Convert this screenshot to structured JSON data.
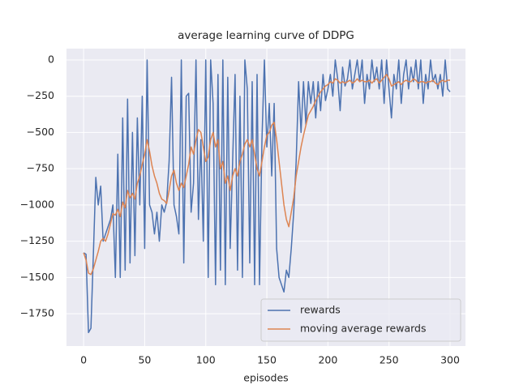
{
  "chart_data": {
    "type": "line",
    "title": "average learning curve of DDPG",
    "xlabel": "episodes",
    "x": [
      0,
      2,
      4,
      6,
      8,
      10,
      12,
      14,
      16,
      18,
      20,
      22,
      24,
      26,
      28,
      30,
      32,
      34,
      36,
      38,
      40,
      42,
      44,
      46,
      48,
      50,
      52,
      54,
      56,
      58,
      60,
      62,
      64,
      66,
      68,
      70,
      72,
      74,
      76,
      78,
      80,
      82,
      84,
      86,
      88,
      90,
      92,
      94,
      96,
      98,
      100,
      102,
      104,
      106,
      108,
      110,
      112,
      114,
      116,
      118,
      120,
      122,
      124,
      126,
      128,
      130,
      132,
      134,
      136,
      138,
      140,
      142,
      144,
      146,
      148,
      150,
      152,
      154,
      156,
      158,
      160,
      162,
      164,
      166,
      168,
      170,
      172,
      174,
      176,
      178,
      180,
      182,
      184,
      186,
      188,
      190,
      192,
      194,
      196,
      198,
      200,
      202,
      204,
      206,
      208,
      210,
      212,
      214,
      216,
      218,
      220,
      222,
      224,
      226,
      228,
      230,
      232,
      234,
      236,
      238,
      240,
      242,
      244,
      246,
      248,
      250,
      252,
      254,
      256,
      258,
      260,
      262,
      264,
      266,
      268,
      270,
      272,
      274,
      276,
      278,
      280,
      282,
      284,
      286,
      288,
      290,
      292,
      294,
      296,
      298,
      300
    ],
    "series": [
      {
        "name": "rewards",
        "color": "#4c72b0",
        "values": [
          -1330,
          -1340,
          -1880,
          -1850,
          -1340,
          -810,
          -1000,
          -870,
          -1250,
          -1200,
          -1150,
          -1100,
          -1000,
          -1500,
          -650,
          -1500,
          -400,
          -1450,
          -270,
          -1400,
          -500,
          -1350,
          -400,
          -1000,
          -250,
          -1300,
          0,
          -1000,
          -1050,
          -1200,
          -1050,
          -1250,
          -1000,
          -1050,
          -980,
          -700,
          -120,
          -1000,
          -1080,
          -1200,
          0,
          -1400,
          -250,
          -230,
          -1050,
          -850,
          0,
          -1100,
          -550,
          -1250,
          0,
          -1500,
          0,
          -300,
          -1550,
          -100,
          -1450,
          0,
          -1550,
          -120,
          -1300,
          -700,
          -100,
          -1450,
          -250,
          -1500,
          0,
          -200,
          -1400,
          -150,
          -1550,
          -100,
          -1550,
          -550,
          0,
          -600,
          -300,
          -800,
          -300,
          -1300,
          -1500,
          -1550,
          -1600,
          -1450,
          -1500,
          -1300,
          -1050,
          -700,
          -150,
          -500,
          -150,
          -450,
          -150,
          -300,
          -150,
          -400,
          -150,
          -350,
          -100,
          -280,
          -200,
          -100,
          -250,
          0,
          -130,
          -350,
          -50,
          -180,
          -130,
          0,
          -200,
          -100,
          0,
          -150,
          0,
          -300,
          -100,
          -200,
          0,
          -150,
          -50,
          -200,
          0,
          -300,
          0,
          -200,
          -400,
          -100,
          -200,
          0,
          -300,
          -100,
          0,
          -200,
          -50,
          -150,
          0,
          -200,
          0,
          -300,
          -100,
          -200,
          0,
          -150,
          -100,
          -200,
          -100,
          -250,
          0,
          -200,
          -220
        ]
      },
      {
        "name": "moving average rewards",
        "color": "#dd8452",
        "values": [
          -1330,
          -1380,
          -1470,
          -1480,
          -1440,
          -1380,
          -1320,
          -1250,
          -1230,
          -1250,
          -1200,
          -1130,
          -1060,
          -1070,
          -1030,
          -1080,
          -980,
          -1020,
          -900,
          -950,
          -920,
          -960,
          -850,
          -800,
          -720,
          -650,
          -550,
          -630,
          -730,
          -800,
          -850,
          -920,
          -960,
          -970,
          -990,
          -900,
          -800,
          -760,
          -850,
          -900,
          -850,
          -880,
          -800,
          -720,
          -600,
          -650,
          -550,
          -480,
          -500,
          -600,
          -700,
          -670,
          -550,
          -500,
          -600,
          -550,
          -750,
          -700,
          -850,
          -800,
          -900,
          -800,
          -750,
          -800,
          -700,
          -650,
          -580,
          -550,
          -600,
          -550,
          -650,
          -750,
          -800,
          -700,
          -600,
          -520,
          -500,
          -450,
          -430,
          -550,
          -700,
          -850,
          -1000,
          -1100,
          -1150,
          -1050,
          -950,
          -800,
          -700,
          -600,
          -520,
          -450,
          -380,
          -350,
          -320,
          -280,
          -250,
          -220,
          -200,
          -180,
          -170,
          -150,
          -160,
          -130,
          -140,
          -160,
          -150,
          -160,
          -150,
          -140,
          -160,
          -150,
          -130,
          -150,
          -140,
          -150,
          -150,
          -140,
          -160,
          -140,
          -130,
          -160,
          -140,
          -120,
          -100,
          -130,
          -180,
          -170,
          -160,
          -150,
          -170,
          -150,
          -140,
          -150,
          -150,
          -130,
          -140,
          -160,
          -150,
          -150,
          -160,
          -150,
          -150,
          -140,
          -160,
          -170,
          -150,
          -140,
          -150,
          -140,
          -140
        ]
      }
    ],
    "xlim": [
      -14,
      312.6
    ],
    "ylim": [
      -1973,
      78
    ],
    "xticks": [
      0,
      50,
      100,
      150,
      200,
      250,
      300
    ],
    "yticks": [
      0,
      {
        "value": -250,
        "label": "−250"
      },
      {
        "value": -500,
        "label": "−500"
      },
      {
        "value": -750,
        "label": "−750"
      },
      {
        "value": -1000,
        "label": "−1000"
      },
      {
        "value": -1250,
        "label": "−1250"
      },
      {
        "value": -1500,
        "label": "−1500"
      },
      {
        "value": -1750,
        "label": "−1750"
      }
    ],
    "grid": true,
    "legend": "lower right"
  }
}
